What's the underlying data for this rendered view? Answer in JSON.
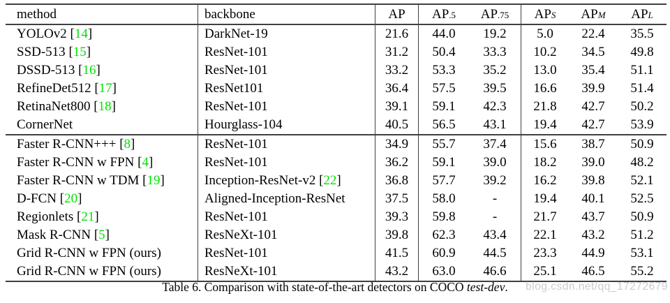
{
  "colors": {
    "reference_green": "#00e100",
    "rule_gray": "#3f3f3f",
    "watermark_gray": "#c8ccd0"
  },
  "table": {
    "ref_brackets": [
      "[",
      "]"
    ],
    "header": {
      "method": "method",
      "backbone": "backbone",
      "metrics": [
        {
          "base": "AP",
          "sub": ""
        },
        {
          "base": "AP",
          "sub": ".5"
        },
        {
          "base": "AP",
          "sub": ".75"
        },
        {
          "base": "AP",
          "sub": "S",
          "italic": true
        },
        {
          "base": "AP",
          "sub": "M",
          "italic": true
        },
        {
          "base": "AP",
          "sub": "L",
          "italic": true
        }
      ]
    },
    "groups": [
      {
        "rows": [
          {
            "method": "YOLOv2",
            "ref": "14",
            "backbone": "DarkNet-19",
            "values": [
              "21.6",
              "44.0",
              "19.2",
              "5.0",
              "22.4",
              "35.5"
            ]
          },
          {
            "method": "SSD-513",
            "ref": "15",
            "backbone": "ResNet-101",
            "values": [
              "31.2",
              "50.4",
              "33.3",
              "10.2",
              "34.5",
              "49.8"
            ]
          },
          {
            "method": "DSSD-513",
            "ref": "16",
            "backbone": "ResNet-101",
            "values": [
              "33.2",
              "53.3",
              "35.2",
              "13.0",
              "35.4",
              "51.1"
            ]
          },
          {
            "method": "RefineDet512",
            "ref": "17",
            "backbone": "ResNet101",
            "values": [
              "36.4",
              "57.5",
              "39.5",
              "16.6",
              "39.9",
              "51.4"
            ]
          },
          {
            "method": "RetinaNet800",
            "ref": "18",
            "backbone": "ResNet-101",
            "values": [
              "39.1",
              "59.1",
              "42.3",
              "21.8",
              "42.7",
              "50.2"
            ]
          },
          {
            "method": "CornerNet",
            "backbone": "Hourglass-104",
            "values": [
              "40.5",
              "56.5",
              "43.1",
              "19.4",
              "42.7",
              "53.9"
            ]
          }
        ]
      },
      {
        "rows": [
          {
            "method": "Faster R-CNN+++",
            "ref": "8",
            "backbone": "ResNet-101",
            "values": [
              "34.9",
              "55.7",
              "37.4",
              "15.6",
              "38.7",
              "50.9"
            ]
          },
          {
            "method": "Faster R-CNN w FPN",
            "ref": "4",
            "backbone": "ResNet-101",
            "values": [
              "36.2",
              "59.1",
              "39.0",
              "18.2",
              "39.0",
              "48.2"
            ]
          },
          {
            "method": "Faster R-CNN w TDM",
            "ref": "19",
            "backbone": "Inception-ResNet-v2",
            "backbone_ref": "22",
            "values": [
              "36.8",
              "57.7",
              "39.2",
              "16.2",
              "39.8",
              "52.1"
            ]
          },
          {
            "method": "D-FCN",
            "ref": "20",
            "backbone": "Aligned-Inception-ResNet",
            "values": [
              "37.5",
              "58.0",
              "-",
              "19.4",
              "40.1",
              "52.5"
            ]
          },
          {
            "method": "Regionlets",
            "ref": "21",
            "backbone": "ResNet-101",
            "values": [
              "39.3",
              "59.8",
              "-",
              "21.7",
              "43.7",
              "50.9"
            ]
          },
          {
            "method": "Mask R-CNN",
            "ref": "5",
            "backbone": "ResNeXt-101",
            "values": [
              "39.8",
              "62.3",
              "43.4",
              "22.1",
              "43.2",
              "51.2"
            ]
          },
          {
            "method": "Grid R-CNN w FPN (ours)",
            "backbone": "ResNet-101",
            "values": [
              "41.5",
              "60.9",
              "44.5",
              "23.3",
              "44.9",
              "53.1"
            ]
          },
          {
            "method": "Grid R-CNN w FPN (ours)",
            "backbone": "ResNeXt-101",
            "values": [
              "43.2",
              "63.0",
              "46.6",
              "25.1",
              "46.5",
              "55.2"
            ]
          }
        ]
      }
    ]
  },
  "caption": {
    "prefix": "Table 6. Comparison with state-of-the-art detectors on COCO ",
    "emphasis": "test-dev",
    "suffix": "."
  },
  "watermark": {
    "text": "blog.csdn.net/qq_17272679"
  }
}
